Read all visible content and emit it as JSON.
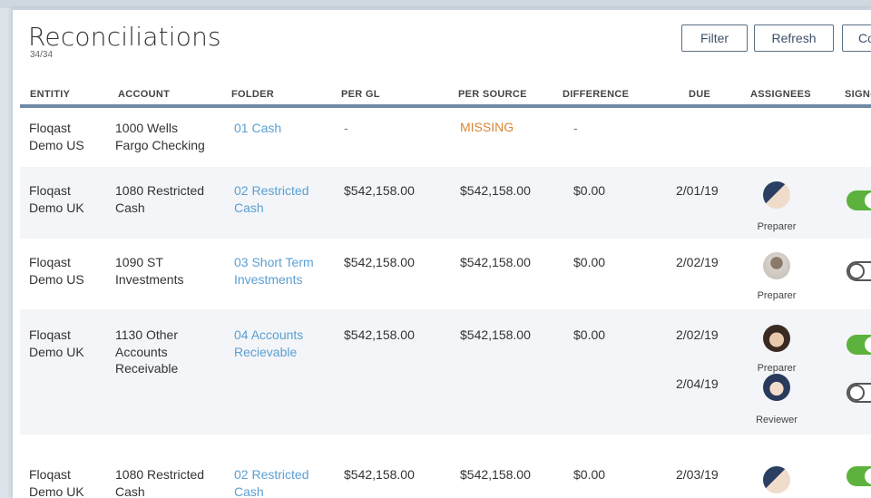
{
  "page": {
    "title": "Reconciliations",
    "count": "34/34"
  },
  "toolbar": {
    "filter_label": "Filter",
    "refresh_label": "Refresh",
    "cut_label": "Co"
  },
  "columns": [
    "ENTITIY",
    "ACCOUNT",
    "FOLDER",
    "PER GL",
    "PER SOURCE",
    "DIFFERENCE",
    "DUE",
    "ASSIGNEES",
    "SIGN-"
  ],
  "rows": [
    {
      "entity": [
        "Floqast",
        "Demo US"
      ],
      "account": [
        "1000 Wells",
        "Fargo Checking"
      ],
      "folder": [
        "01 Cash"
      ],
      "per_gl": "-",
      "per_source": "MISSING",
      "difference": "-",
      "assignees": []
    },
    {
      "entity": [
        "Floqast",
        "Demo UK"
      ],
      "account": [
        "1080 Restricted",
        "Cash"
      ],
      "folder": [
        "02 Restricted",
        "Cash"
      ],
      "per_gl": "$542,158.00",
      "per_source": "$542,158.00",
      "difference": "$0.00",
      "assignees": [
        {
          "due": "2/01/19",
          "role": "Preparer",
          "signed": true
        }
      ]
    },
    {
      "entity": [
        "Floqast",
        "Demo US"
      ],
      "account": [
        "1090 ST",
        "Investments"
      ],
      "folder": [
        "03 Short Term",
        "Investments"
      ],
      "per_gl": "$542,158.00",
      "per_source": "$542,158.00",
      "difference": "$0.00",
      "assignees": [
        {
          "due": "2/02/19",
          "role": "Preparer",
          "signed": false
        }
      ]
    },
    {
      "entity": [
        "Floqast",
        "Demo UK"
      ],
      "account": [
        "1130 Other",
        "Accounts",
        "Receivable"
      ],
      "folder": [
        "04 Accounts",
        "Recievable"
      ],
      "per_gl": "$542,158.00",
      "per_source": "$542,158.00",
      "difference": "$0.00",
      "assignees": [
        {
          "due": "2/02/19",
          "role": "Preparer",
          "signed": true
        },
        {
          "due": "2/04/19",
          "role": "Reviewer",
          "signed": false
        }
      ]
    },
    {
      "entity": [
        "Floqast",
        "Demo UK"
      ],
      "account": [
        "1080 Restricted",
        "Cash"
      ],
      "folder": [
        "02 Restricted",
        "Cash"
      ],
      "per_gl": "$542,158.00",
      "per_source": "$542,158.00",
      "difference": "$0.00",
      "assignees": [
        {
          "due": "2/03/19",
          "role": "",
          "signed": true
        }
      ]
    }
  ],
  "colors": {
    "link": "#5b9fd1",
    "missing": "#d98634",
    "toggle_on": "#5cb23c",
    "header_rule": "#6f8aa6"
  }
}
